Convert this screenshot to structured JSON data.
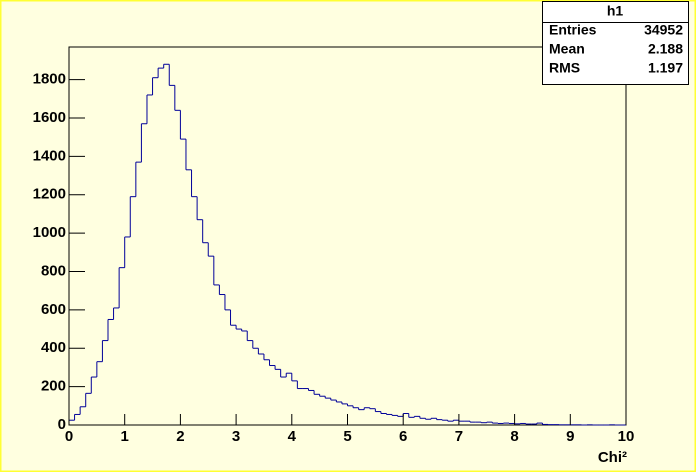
{
  "chart_data": {
    "type": "histogram",
    "title": "h1",
    "x_label": "Chi²",
    "stats": [
      {
        "label": "Entries",
        "value": "34952"
      },
      {
        "label": "Mean",
        "value": "2.188"
      },
      {
        "label": "RMS",
        "value": "1.197"
      }
    ],
    "color": "#000099",
    "bins": [
      0,
      0.1,
      0.2,
      0.3,
      0.4,
      0.5,
      0.6,
      0.7,
      0.8,
      0.9,
      1,
      1.1,
      1.2,
      1.3,
      1.4,
      1.5,
      1.6,
      1.7,
      1.8,
      1.9,
      2,
      2.1,
      2.2,
      2.3,
      2.4,
      2.5,
      2.6,
      2.7,
      2.8,
      2.9,
      3,
      3.1,
      3.2,
      3.3,
      3.4,
      3.5,
      3.6,
      3.7,
      3.8,
      3.9,
      4,
      4.1,
      4.2,
      4.3,
      4.4,
      4.5,
      4.6,
      4.7,
      4.8,
      4.9,
      5,
      5.1,
      5.2,
      5.3,
      5.4,
      5.5,
      5.6,
      5.7,
      5.8,
      5.9,
      6,
      6.1,
      6.2,
      6.3,
      6.4,
      6.5,
      6.6,
      6.7,
      6.8,
      6.9,
      7,
      7.1,
      7.2,
      7.3,
      7.4,
      7.5,
      7.6,
      7.7,
      7.8,
      7.9,
      8,
      8.1,
      8.2,
      8.3,
      8.4,
      8.5,
      8.6,
      8.7,
      8.8,
      8.9,
      9,
      9.1,
      9.2,
      9.3,
      9.4,
      9.5,
      9.6,
      9.7,
      9.8,
      9.9,
      10
    ],
    "values": [
      25,
      55,
      95,
      165,
      250,
      330,
      440,
      550,
      610,
      820,
      980,
      1190,
      1370,
      1570,
      1720,
      1810,
      1860,
      1880,
      1770,
      1640,
      1490,
      1330,
      1190,
      1070,
      950,
      880,
      730,
      680,
      600,
      520,
      500,
      490,
      440,
      400,
      370,
      340,
      310,
      290,
      250,
      270,
      230,
      190,
      190,
      180,
      160,
      150,
      140,
      130,
      120,
      110,
      100,
      90,
      80,
      90,
      85,
      70,
      60,
      55,
      50,
      45,
      60,
      40,
      45,
      35,
      30,
      35,
      28,
      25,
      20,
      25,
      20,
      20,
      15,
      15,
      12,
      15,
      10,
      8,
      10,
      8,
      6,
      8,
      5,
      5,
      10,
      3,
      2,
      2,
      1,
      1,
      1,
      1,
      0,
      1,
      0,
      0,
      0,
      1,
      0,
      0
    ],
    "xlim": [
      0,
      10
    ],
    "xticks": [
      0,
      1,
      2,
      3,
      4,
      5,
      6,
      7,
      8,
      9,
      10
    ],
    "ylim": [
      0,
      1970
    ],
    "yticks": [
      0,
      200,
      400,
      600,
      800,
      1000,
      1200,
      1400,
      1600,
      1800
    ]
  }
}
